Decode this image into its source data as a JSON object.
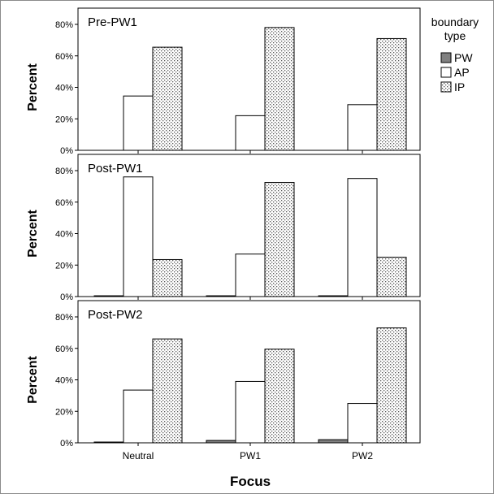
{
  "chart_data": {
    "type": "bar",
    "categories": [
      "Neutral",
      "PW1",
      "PW2"
    ],
    "xlabel": "Focus",
    "ylabel": "Percent",
    "ylim": [
      0,
      80
    ],
    "yticks": [
      "0%",
      "20%",
      "40%",
      "60%",
      "80%"
    ],
    "legend": {
      "title_lines": [
        "boundary",
        "type"
      ],
      "entries": [
        "PW",
        "AP",
        "IP"
      ],
      "placement": "top-right"
    },
    "colors": {
      "PW": "#808080",
      "AP": "#ffffff",
      "IP": "#e8e8e8",
      "border": "#000000"
    },
    "panels": [
      {
        "title": "Pre-PW1",
        "series": [
          {
            "name": "PW",
            "values": [
              0,
              0,
              0
            ]
          },
          {
            "name": "AP",
            "values": [
              34.5,
              22,
              29
            ]
          },
          {
            "name": "IP",
            "values": [
              65.5,
              78,
              71
            ]
          }
        ]
      },
      {
        "title": "Post-PW1",
        "series": [
          {
            "name": "PW",
            "values": [
              0.5,
              0.5,
              0.5
            ]
          },
          {
            "name": "AP",
            "values": [
              76,
              27,
              75
            ]
          },
          {
            "name": "IP",
            "values": [
              23.5,
              72.5,
              25
            ]
          }
        ]
      },
      {
        "title": "Post-PW2",
        "series": [
          {
            "name": "PW",
            "values": [
              0.5,
              1.5,
              2
            ]
          },
          {
            "name": "AP",
            "values": [
              33.5,
              39,
              25
            ]
          },
          {
            "name": "IP",
            "values": [
              66,
              59.5,
              73
            ]
          }
        ]
      }
    ]
  }
}
